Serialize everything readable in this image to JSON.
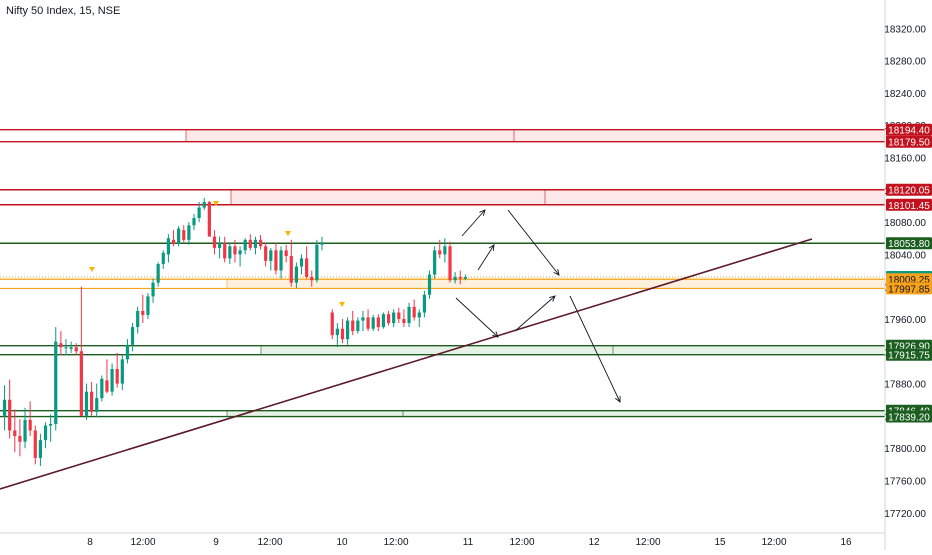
{
  "header": {
    "title": "Nifty 50 Index, 15, NSE"
  },
  "colors": {
    "up": "#089981",
    "down": "#f23645",
    "support": "#1b5e20",
    "resistance": "#c2121f",
    "current": "#f7a21b",
    "trendline": "#5d1a2e",
    "arrow": "#131722",
    "axis_text": "#131722",
    "grid": "#e0e3eb"
  },
  "chart_data": {
    "type": "candlestick",
    "title": "Nifty 50 Index, 15, NSE",
    "ylim": [
      17695,
      18355
    ],
    "y_ticks": [
      "17720.00",
      "17760.00",
      "17800.00",
      "17840.00",
      "17880.00",
      "17920.00",
      "17960.00",
      "18000.00",
      "18040.00",
      "18080.00",
      "18120.00",
      "18160.00",
      "18200.00",
      "18240.00",
      "18280.00",
      "18320.00"
    ],
    "x_ticks": [
      "8",
      "12:00",
      "9",
      "12:00",
      "10",
      "12:00",
      "11",
      "12:00",
      "12",
      "12:00",
      "15",
      "12:00",
      "16"
    ],
    "price_labels": [
      {
        "text": "18194.40",
        "value": 18194.4,
        "kind": "resistance"
      },
      {
        "text": "18179.50",
        "value": 18179.5,
        "kind": "resistance"
      },
      {
        "text": "18120.05",
        "value": 18120.05,
        "kind": "resistance"
      },
      {
        "text": "18101.45",
        "value": 18101.45,
        "kind": "resistance"
      },
      {
        "text": "18053.80",
        "value": 18053.8,
        "kind": "support"
      },
      {
        "text": "18011.95",
        "value": 18011.95,
        "kind": "last"
      },
      {
        "text": "18009.25",
        "value": 18009.25,
        "kind": "zone"
      },
      {
        "text": "17997.85",
        "value": 17997.85,
        "kind": "zone"
      },
      {
        "text": "17926.90",
        "value": 17926.9,
        "kind": "support"
      },
      {
        "text": "17915.75",
        "value": 17915.75,
        "kind": "support"
      },
      {
        "text": "17846.40",
        "value": 17846.4,
        "kind": "support"
      },
      {
        "text": "17839.20",
        "value": 17839.2,
        "kind": "support"
      }
    ],
    "candles": [
      [
        17840,
        17878,
        17822,
        17860
      ],
      [
        17860,
        17885,
        17812,
        17822
      ],
      [
        17822,
        17848,
        17795,
        17815
      ],
      [
        17815,
        17836,
        17790,
        17808
      ],
      [
        17808,
        17850,
        17800,
        17835
      ],
      [
        17835,
        17858,
        17815,
        17822
      ],
      [
        17822,
        17828,
        17780,
        17788
      ],
      [
        17788,
        17818,
        17778,
        17810
      ],
      [
        17810,
        17832,
        17800,
        17828
      ],
      [
        17828,
        17842,
        17808,
        17830
      ],
      [
        17830,
        17950,
        17822,
        17932
      ],
      [
        17930,
        17945,
        17915,
        17925
      ],
      [
        17925,
        17935,
        17915,
        17925
      ],
      [
        17923,
        17932,
        17918,
        17925
      ],
      [
        17925,
        17930,
        17915,
        17920
      ],
      [
        17920,
        18000,
        17842,
        17840
      ],
      [
        17840,
        17880,
        17835,
        17870
      ],
      [
        17870,
        17882,
        17840,
        17845
      ],
      [
        17845,
        17880,
        17838,
        17862
      ],
      [
        17862,
        17890,
        17858,
        17886
      ],
      [
        17884,
        17910,
        17868,
        17870
      ],
      [
        17870,
        17905,
        17865,
        17898
      ],
      [
        17898,
        17918,
        17875,
        17880
      ],
      [
        17880,
        17915,
        17872,
        17910
      ],
      [
        17910,
        17935,
        17905,
        17928
      ],
      [
        17928,
        17955,
        17920,
        17950
      ],
      [
        17950,
        17975,
        17942,
        17970
      ],
      [
        17970,
        17990,
        17955,
        17965
      ],
      [
        17965,
        17992,
        17960,
        17988
      ],
      [
        17988,
        18010,
        17980,
        18005
      ],
      [
        18005,
        18030,
        18000,
        18028
      ],
      [
        18028,
        18045,
        18022,
        18042
      ],
      [
        18040,
        18065,
        18030,
        18060
      ],
      [
        18058,
        18070,
        18050,
        18053
      ],
      [
        18053,
        18075,
        18050,
        18072
      ],
      [
        18070,
        18076,
        18055,
        18058
      ],
      [
        18058,
        18080,
        18052,
        18076
      ],
      [
        18076,
        18090,
        18070,
        18085
      ],
      [
        18085,
        18105,
        18080,
        18098
      ],
      [
        18098,
        18110,
        18095,
        18105
      ],
      [
        18105,
        18106,
        18070,
        18062
      ],
      [
        18062,
        18070,
        18040,
        18048
      ],
      [
        18048,
        18062,
        18035,
        18054
      ],
      [
        18054,
        18062,
        18030,
        18035
      ],
      [
        18035,
        18055,
        18028,
        18050
      ],
      [
        18050,
        18058,
        18030,
        18040
      ],
      [
        18040,
        18050,
        18025,
        18045
      ],
      [
        18045,
        18060,
        18040,
        18058
      ],
      [
        18058,
        18065,
        18045,
        18048
      ],
      [
        18048,
        18062,
        18040,
        18058
      ],
      [
        18058,
        18064,
        18046,
        18050
      ],
      [
        18050,
        18055,
        18025,
        18032
      ],
      [
        18032,
        18048,
        18020,
        18045
      ],
      [
        18045,
        18055,
        18015,
        18020
      ],
      [
        18020,
        18050,
        18010,
        18045
      ],
      [
        18045,
        18052,
        18030,
        18038
      ],
      [
        18038,
        18058,
        18000,
        18005
      ],
      [
        18005,
        18030,
        17998,
        18025
      ],
      [
        18025,
        18040,
        18015,
        18035
      ],
      [
        18035,
        18050,
        18010,
        18012
      ],
      [
        18012,
        18020,
        18000,
        18008
      ],
      [
        18008,
        18058,
        18005,
        18052
      ],
      [
        18052,
        18062,
        18045,
        18055
      ],
      null,
      [
        17968,
        17972,
        17935,
        17940
      ],
      [
        17940,
        17955,
        17925,
        17948
      ],
      [
        17948,
        17960,
        17930,
        17935
      ],
      [
        17935,
        17962,
        17928,
        17958
      ],
      [
        17958,
        17970,
        17940,
        17945
      ],
      [
        17945,
        17962,
        17942,
        17958
      ],
      [
        17958,
        17970,
        17945,
        17962
      ],
      [
        17962,
        17972,
        17945,
        17948
      ],
      [
        17948,
        17965,
        17945,
        17962
      ],
      [
        17962,
        17966,
        17945,
        17950
      ],
      [
        17950,
        17968,
        17948,
        17966
      ],
      [
        17966,
        17970,
        17952,
        17955
      ],
      [
        17955,
        17972,
        17950,
        17968
      ],
      [
        17968,
        17974,
        17955,
        17960
      ],
      [
        17960,
        17972,
        17950,
        17955
      ],
      [
        17955,
        17980,
        17950,
        17975
      ],
      [
        17975,
        17984,
        17958,
        17962
      ],
      [
        17962,
        17972,
        17950,
        17968
      ],
      [
        17968,
        17995,
        17962,
        17990
      ],
      [
        17990,
        18020,
        17985,
        18015
      ],
      [
        18015,
        18050,
        18010,
        18045
      ],
      [
        18045,
        18058,
        18035,
        18040
      ],
      [
        18040,
        18060,
        18030,
        18050
      ],
      [
        18050,
        18056,
        18005,
        18008
      ],
      [
        18008,
        18018,
        18004,
        18012
      ],
      [
        18012,
        18020,
        18003,
        18010
      ],
      [
        18010,
        18015,
        18008,
        18012
      ]
    ]
  },
  "lines": {
    "resistance_levels": [
      18194.4,
      18179.5,
      18120.05,
      18101.45
    ],
    "support_levels": [
      18053.8,
      17926.9,
      17915.75,
      17846.4,
      17839.2
    ],
    "zone_levels": [
      18009.25,
      17997.85
    ],
    "last_price": 18011.95
  }
}
